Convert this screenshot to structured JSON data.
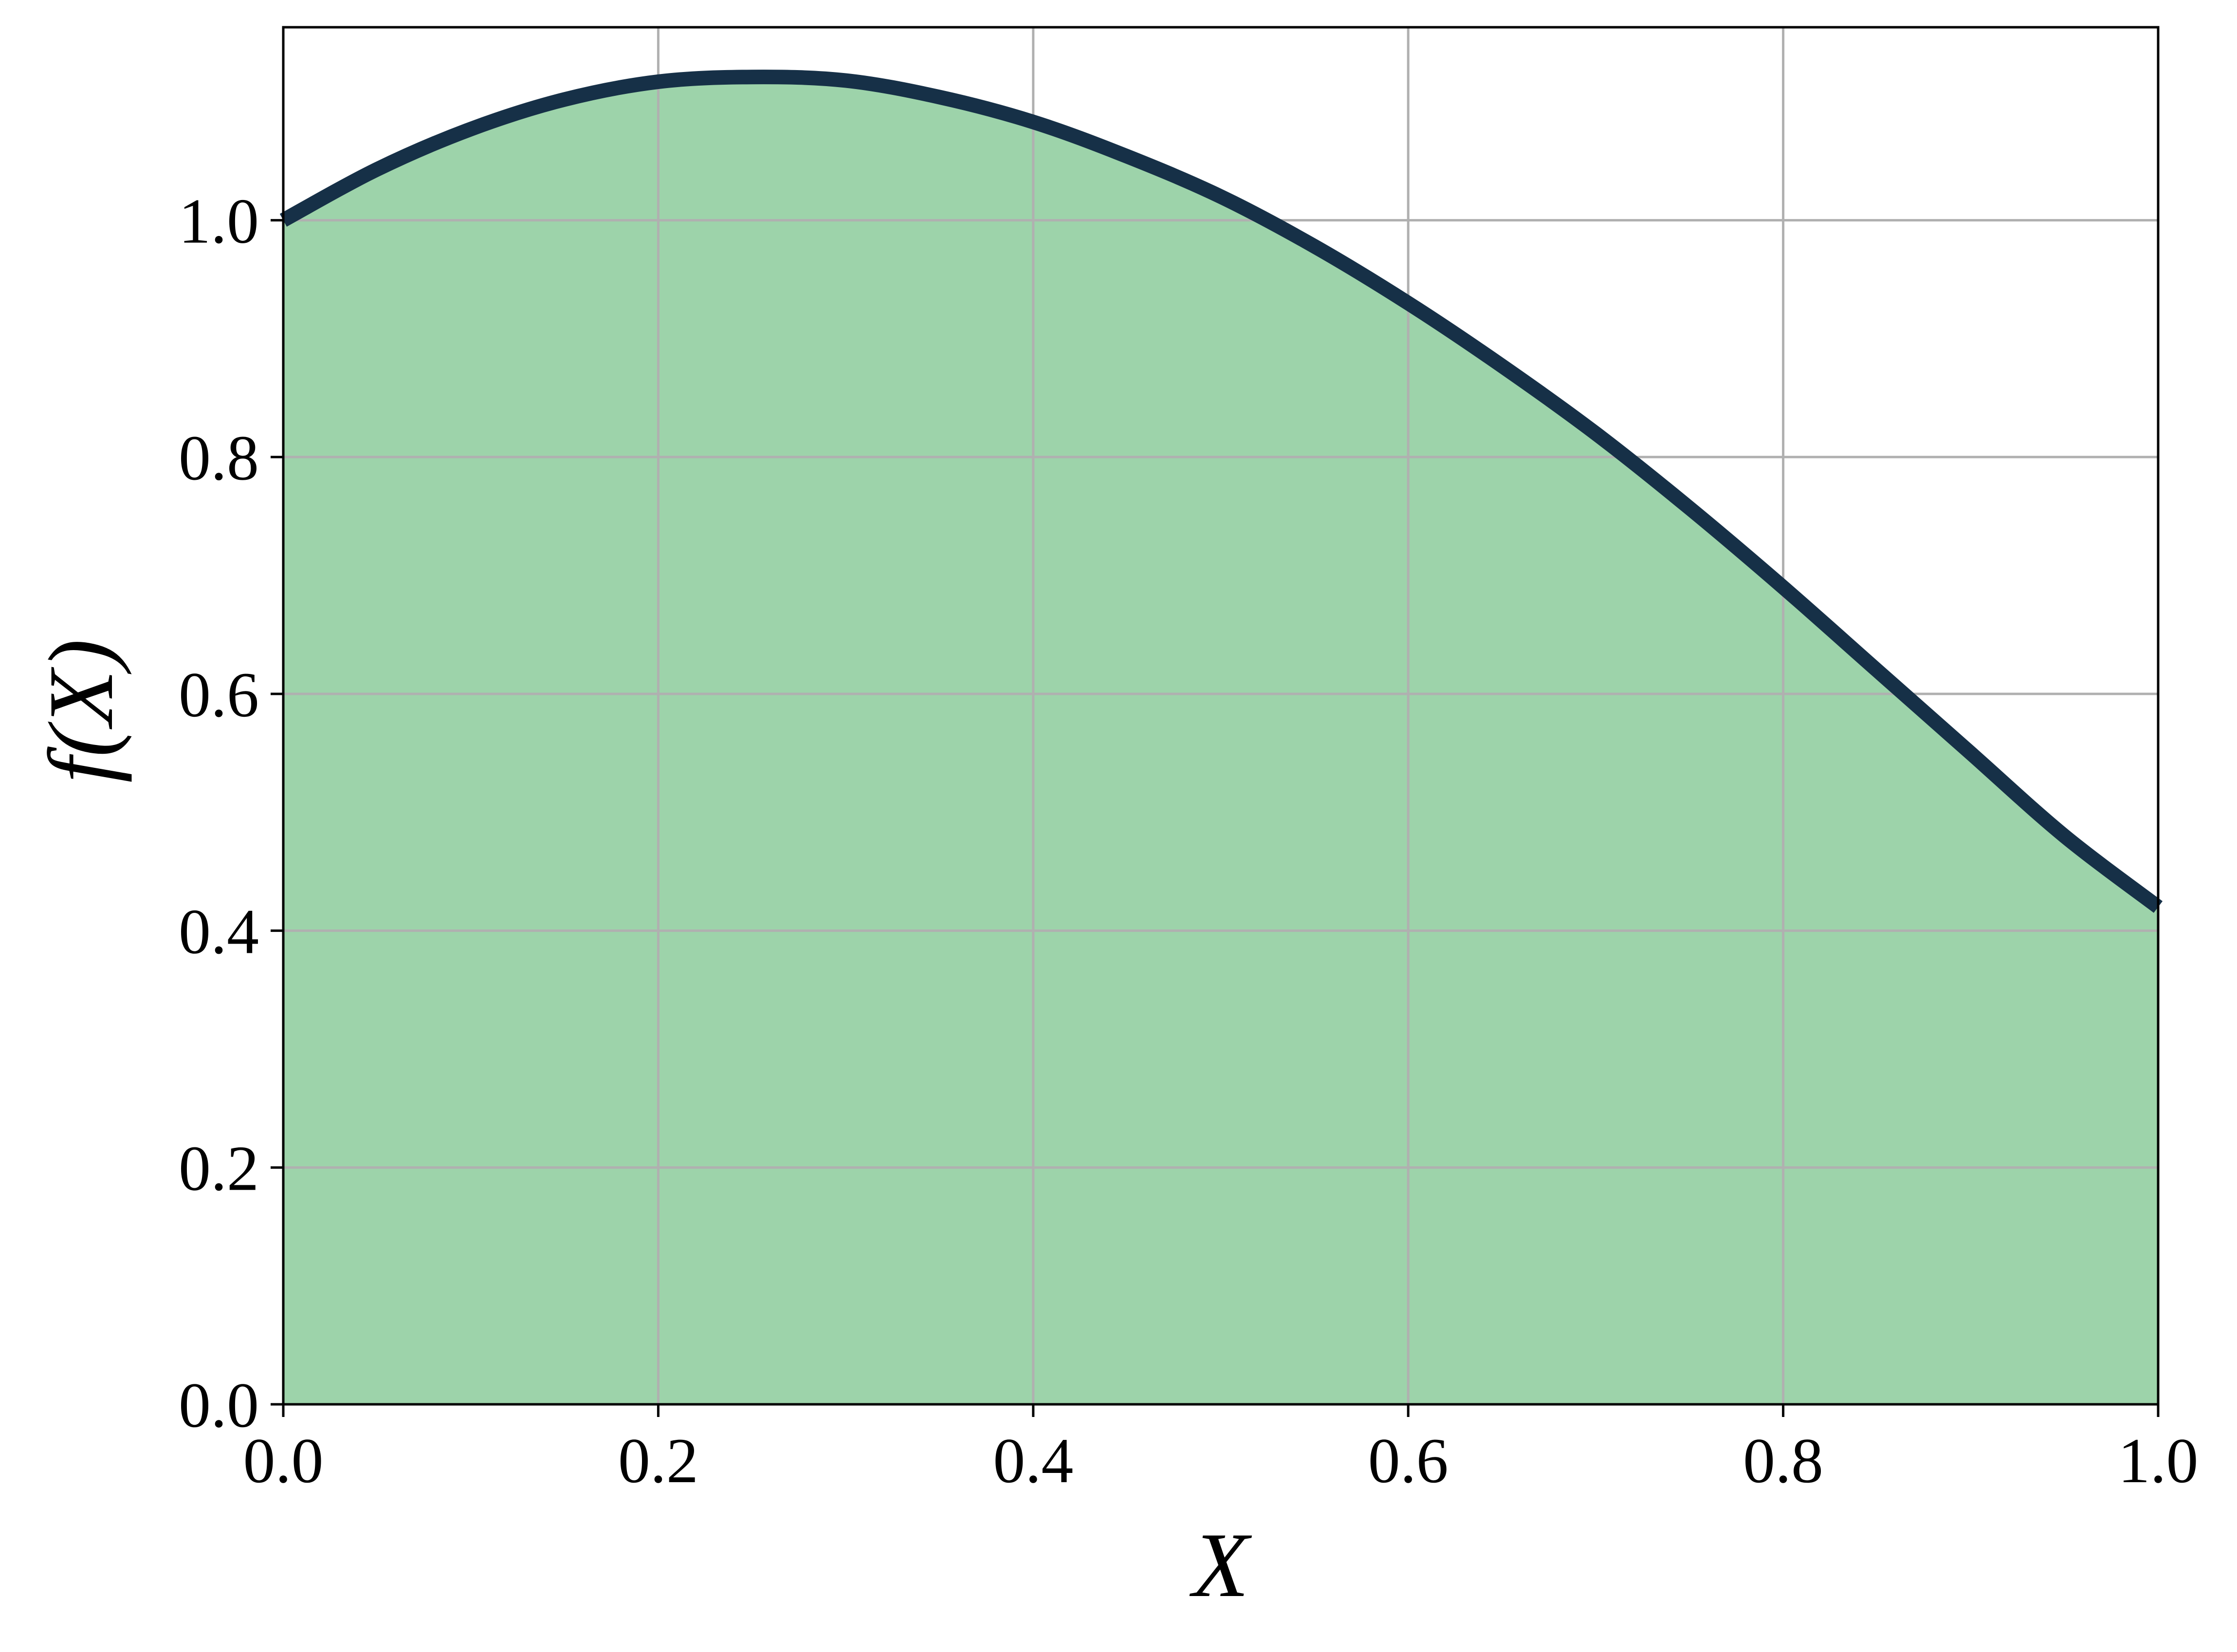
{
  "chart_data": {
    "type": "area",
    "xlabel": "X",
    "ylabel": "f(X)",
    "xlim": [
      0.0,
      1.0
    ],
    "ylim": [
      0.0,
      1.163
    ],
    "x_ticks": [
      "0.0",
      "0.2",
      "0.4",
      "0.6",
      "0.8",
      "1.0"
    ],
    "y_ticks": [
      "0.0",
      "0.2",
      "0.4",
      "0.6",
      "0.8",
      "1.0"
    ],
    "grid": true,
    "colors": {
      "line": "#163047",
      "fill": "#9dd3aa"
    },
    "series": [
      {
        "x": [
          0.0,
          0.05,
          0.1,
          0.15,
          0.2,
          0.25,
          0.3,
          0.35,
          0.4,
          0.45,
          0.5,
          0.55,
          0.6,
          0.65,
          0.7,
          0.75,
          0.8,
          0.85,
          0.9,
          0.95,
          1.0
        ],
        "y": [
          1.0,
          1.043,
          1.077,
          1.102,
          1.117,
          1.121,
          1.118,
          1.104,
          1.083,
          1.054,
          1.02,
          0.978,
          0.93,
          0.877,
          0.82,
          0.757,
          0.69,
          0.62,
          0.55,
          0.48,
          0.42
        ]
      }
    ]
  }
}
